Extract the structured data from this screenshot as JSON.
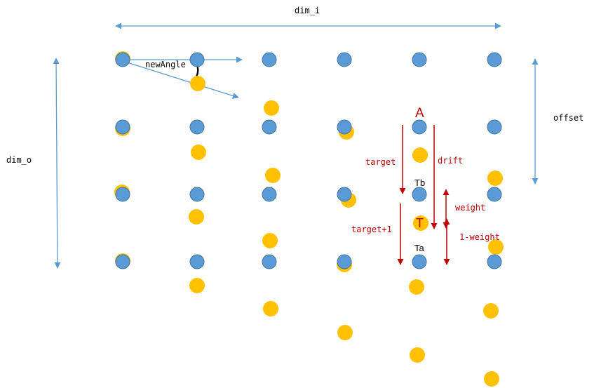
{
  "labels": {
    "dim_i": "dim_i",
    "dim_o": "dim_o",
    "offset": "offset",
    "newAngle": "newAngle",
    "A": "A",
    "target": "target",
    "drift": "drift",
    "Tb": "Tb",
    "weight": "weight",
    "T": "T",
    "target_plus_1": "target+1",
    "one_minus_weight": "1-weight",
    "Ta": "Ta"
  },
  "colors": {
    "blue_dot": "#5b9bd5",
    "blue_dot_stroke": "#41719c",
    "orange_dot": "#ffc000",
    "blue_arrow": "#5b9bd5",
    "red_arrow": "#c00000",
    "label_text": "#000000",
    "red_text": "#c00000"
  }
}
